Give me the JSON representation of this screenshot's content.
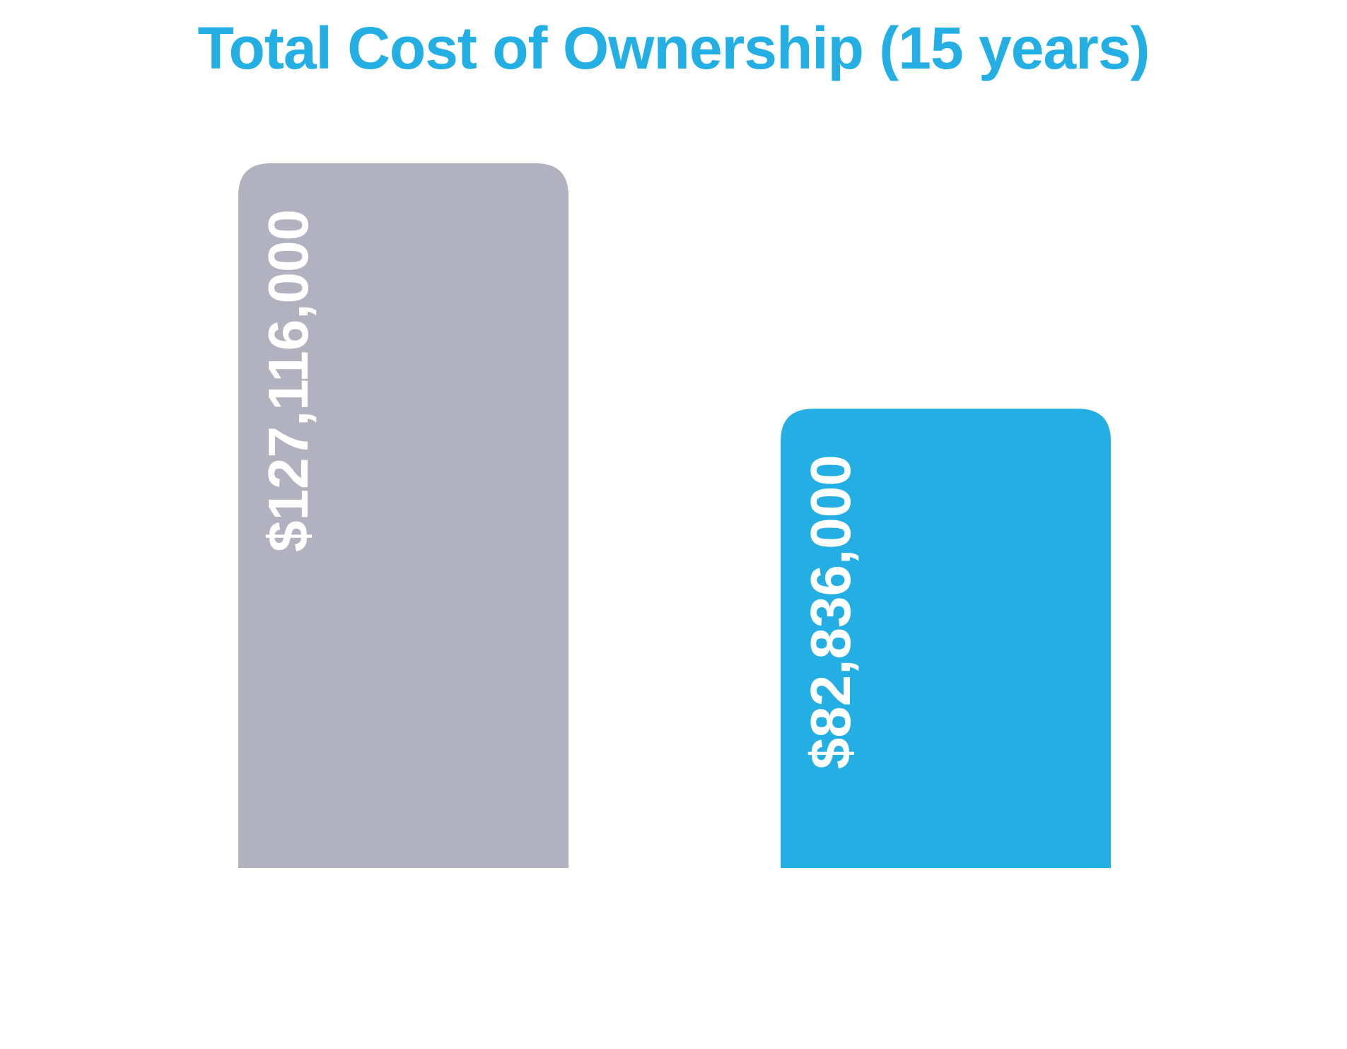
{
  "chart_data": {
    "type": "bar",
    "title": "Total Cost of Ownership (15 years)",
    "categories": [
      "",
      ""
    ],
    "values": [
      127116000,
      82836000
    ],
    "value_labels": [
      "$127,116,000",
      "$82,836,000"
    ],
    "colors": [
      "#b2b1bf",
      "#23afe3"
    ],
    "title_color": "#23afe3",
    "xlabel": "",
    "ylabel": "",
    "ylim": [
      0,
      127116000
    ],
    "grid": false,
    "legend": "none"
  }
}
